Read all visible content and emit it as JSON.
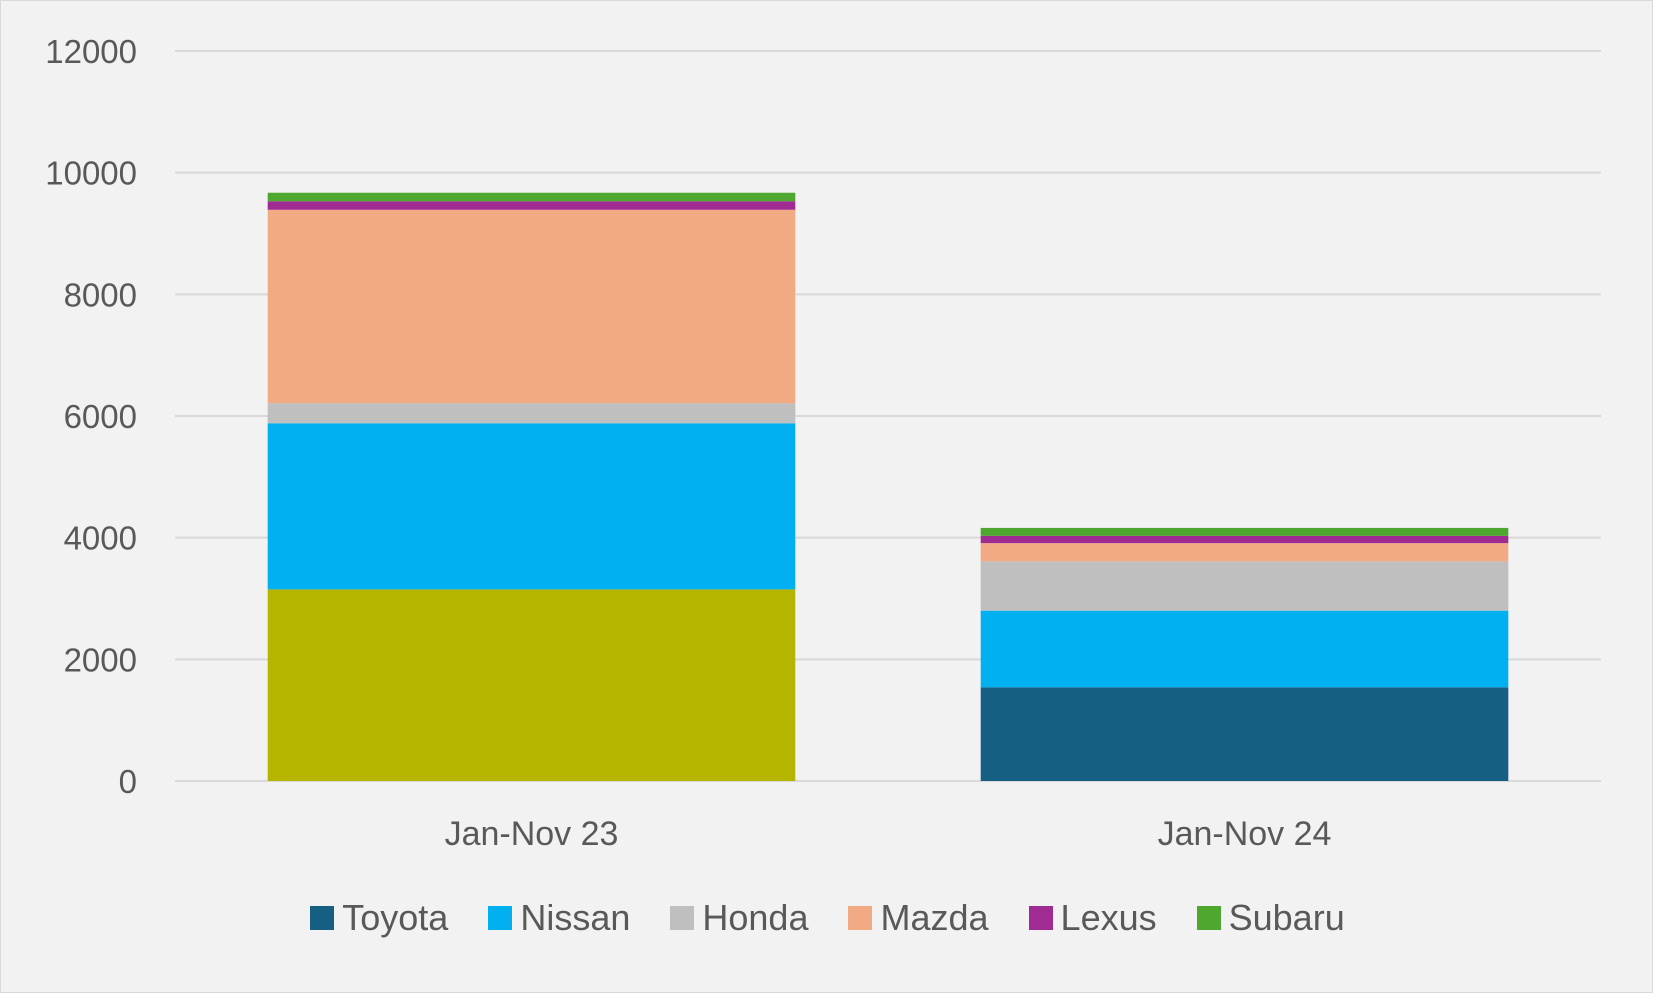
{
  "chart_data": {
    "type": "bar",
    "stacked": true,
    "categories": [
      "Jan-Nov 23",
      "Jan-Nov 24"
    ],
    "ylim": [
      0,
      12000
    ],
    "yticks": [
      0,
      2000,
      4000,
      6000,
      8000,
      10000,
      12000
    ],
    "grid": true,
    "legend_position": "bottom",
    "series": [
      {
        "name": "Toyota",
        "color": "#156082",
        "values": [
          3150,
          1540
        ]
      },
      {
        "name": "Nissan",
        "color": "#00b0f0",
        "values": [
          2730,
          1260
        ]
      },
      {
        "name": "Honda",
        "color": "#bfbfbf",
        "values": [
          330,
          810
        ]
      },
      {
        "name": "Mazda",
        "color": "#f2aa84",
        "values": [
          3180,
          300
        ]
      },
      {
        "name": "Lexus",
        "color": "#a02b93",
        "values": [
          140,
          120
        ]
      },
      {
        "name": "Subaru",
        "color": "#4ea72e",
        "values": [
          140,
          130
        ]
      }
    ],
    "bar_color_overrides": [
      {
        "series": "Toyota",
        "category": "Jan-Nov 23",
        "color": "#b5b500"
      }
    ]
  }
}
